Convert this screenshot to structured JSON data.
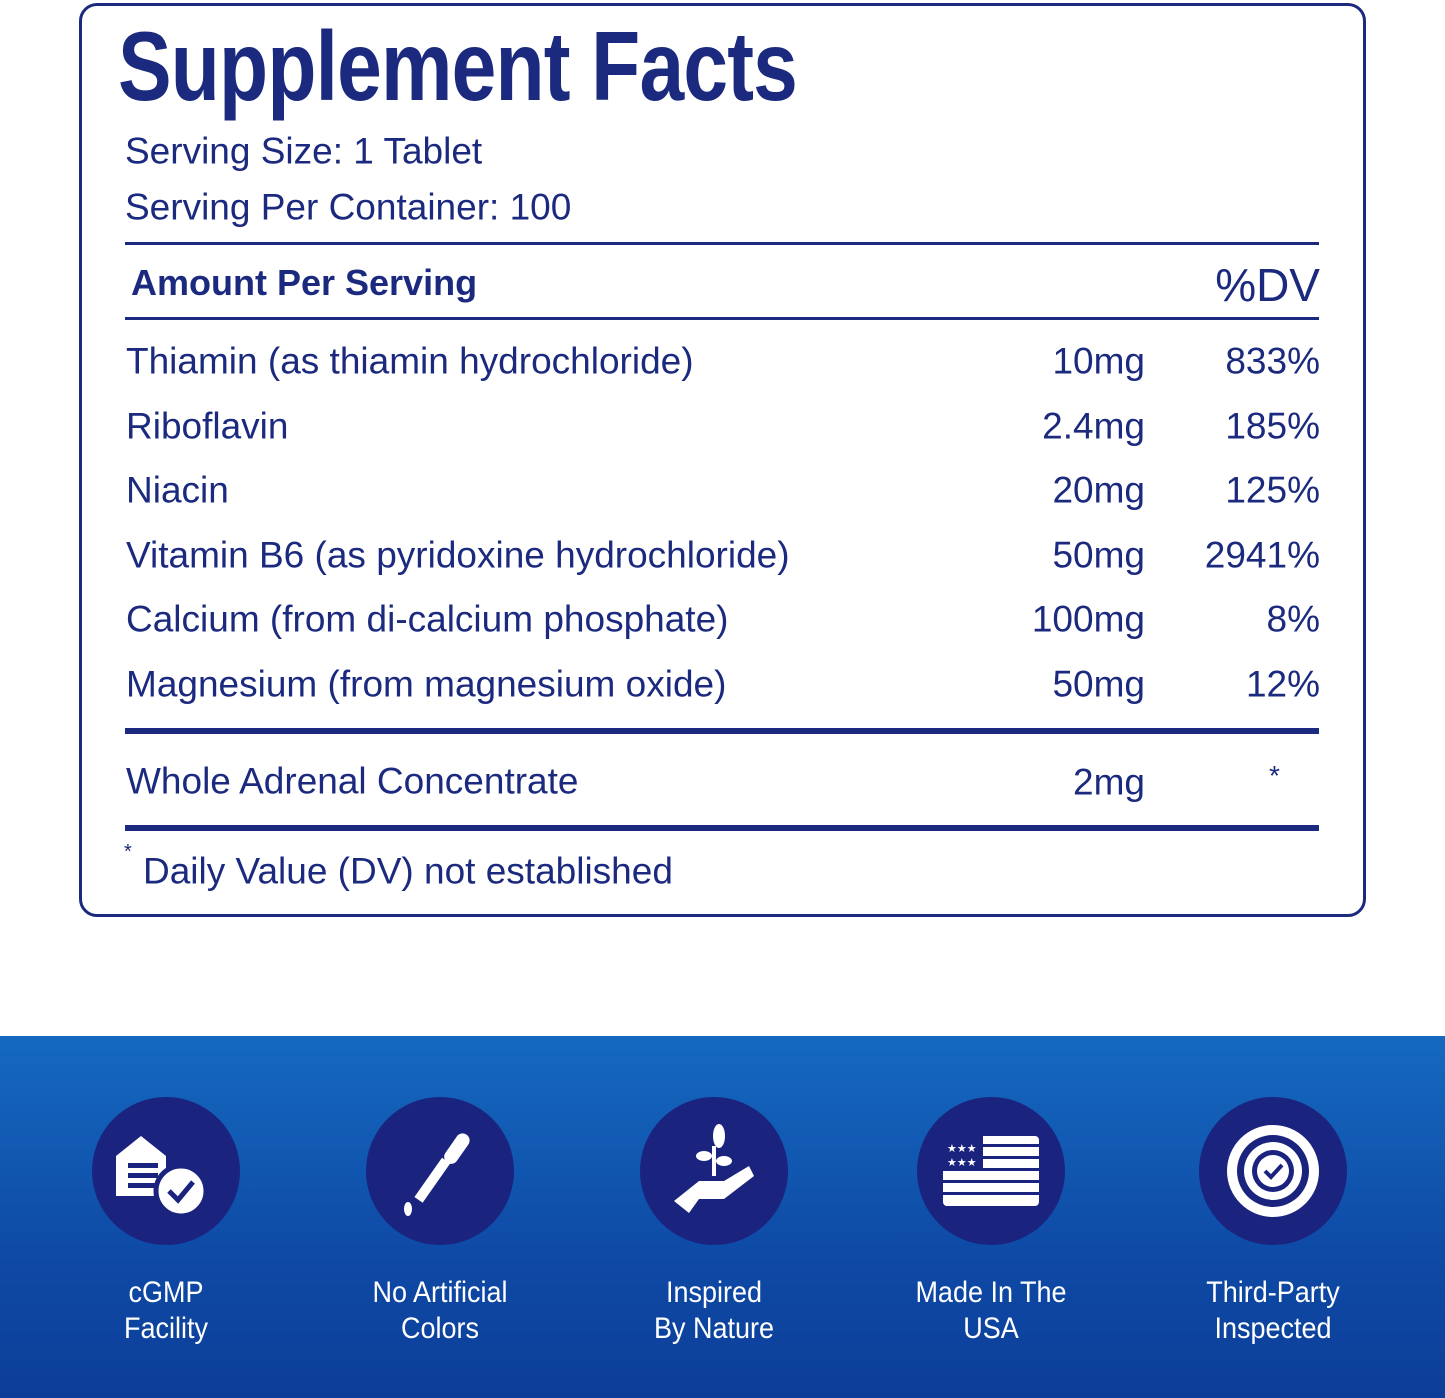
{
  "title": "Supplement Facts",
  "serving_size": "Serving Size: 1 Tablet",
  "servings_per_container": "Serving Per Container: 100",
  "header": {
    "amount_per_serving": "Amount Per Serving",
    "dv": "%DV"
  },
  "nutrients": [
    {
      "name": "Thiamin (as thiamin hydrochloride)",
      "amount": "10mg",
      "dv": "833%"
    },
    {
      "name": "Riboflavin",
      "amount": "2.4mg",
      "dv": "185%"
    },
    {
      "name": "Niacin",
      "amount": "20mg",
      "dv": "125%"
    },
    {
      "name": "Vitamin B6 (as pyridoxine hydrochloride)",
      "amount": "50mg",
      "dv": "2941%"
    },
    {
      "name": "Calcium (from di-calcium phosphate)",
      "amount": "100mg",
      "dv": "8%"
    },
    {
      "name": "Magnesium (from magnesium oxide)",
      "amount": "50mg",
      "dv": "12%"
    }
  ],
  "other": {
    "name": "Whole Adrenal Concentrate",
    "amount": "2mg",
    "dv": "*"
  },
  "footnote": {
    "mark": "*",
    "text": "Daily Value (DV) not established"
  },
  "colors": {
    "navy": "#1b2a7e",
    "band": "#1569bf",
    "circle": "#1a237e"
  },
  "badges": [
    {
      "icon": "facility-check-icon",
      "line1": "cGMP",
      "line2": "Facility"
    },
    {
      "icon": "dropper-icon",
      "line1": "No Artificial",
      "line2": "Colors"
    },
    {
      "icon": "hand-sprout-icon",
      "line1": "Inspired",
      "line2": "By Nature"
    },
    {
      "icon": "us-flag-icon",
      "line1": "Made In The",
      "line2": "USA"
    },
    {
      "icon": "seal-check-icon",
      "line1": "Third-Party",
      "line2": "Inspected"
    }
  ]
}
